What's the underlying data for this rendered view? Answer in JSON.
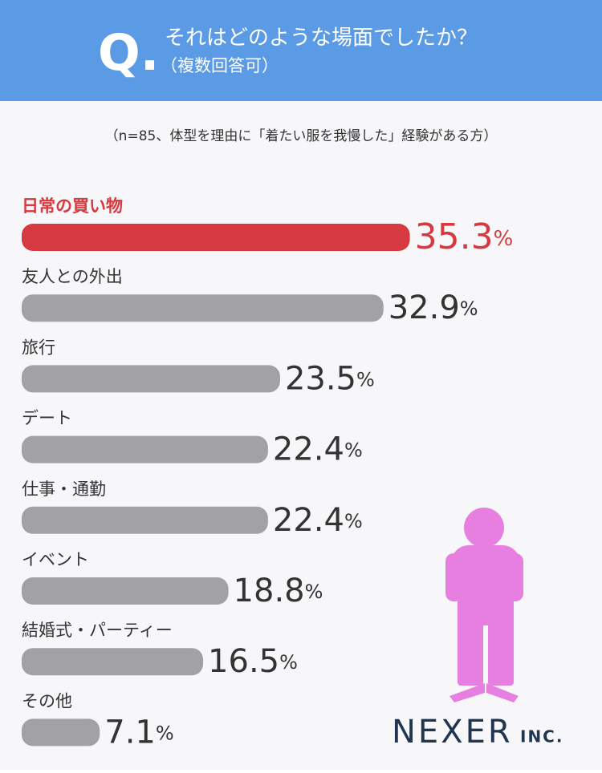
{
  "chart_data": {
    "type": "bar",
    "question_mark": "Q.",
    "title": "それはどのような場面でしたか？",
    "title_note": "（複数回答可）",
    "subtitle": "（n=85、体型を理由に「着たい服を我慢した」経験がある方）",
    "categories": [
      "日常の買い物",
      "友人との外出",
      "旅行",
      "デート",
      "仕事・通勤",
      "イベント",
      "結婚式・パーティー",
      "その他"
    ],
    "values": [
      35.3,
      32.9,
      23.5,
      22.4,
      22.4,
      18.8,
      16.5,
      7.1
    ],
    "value_labels": [
      "35.3%",
      "32.9%",
      "23.5%",
      "22.4%",
      "22.4%",
      "18.8%",
      "16.5%",
      "7.1%"
    ],
    "color": "#a2a2a6",
    "colors": [
      "#d63a40",
      "#a2a2a6",
      "#a2a2a6",
      "#a2a2a6",
      "#a2a2a6",
      "#a2a2a6",
      "#a2a2a6",
      "#a2a2a6"
    ],
    "logo": "NEXER",
    "logo_suffix": "INC."
  }
}
